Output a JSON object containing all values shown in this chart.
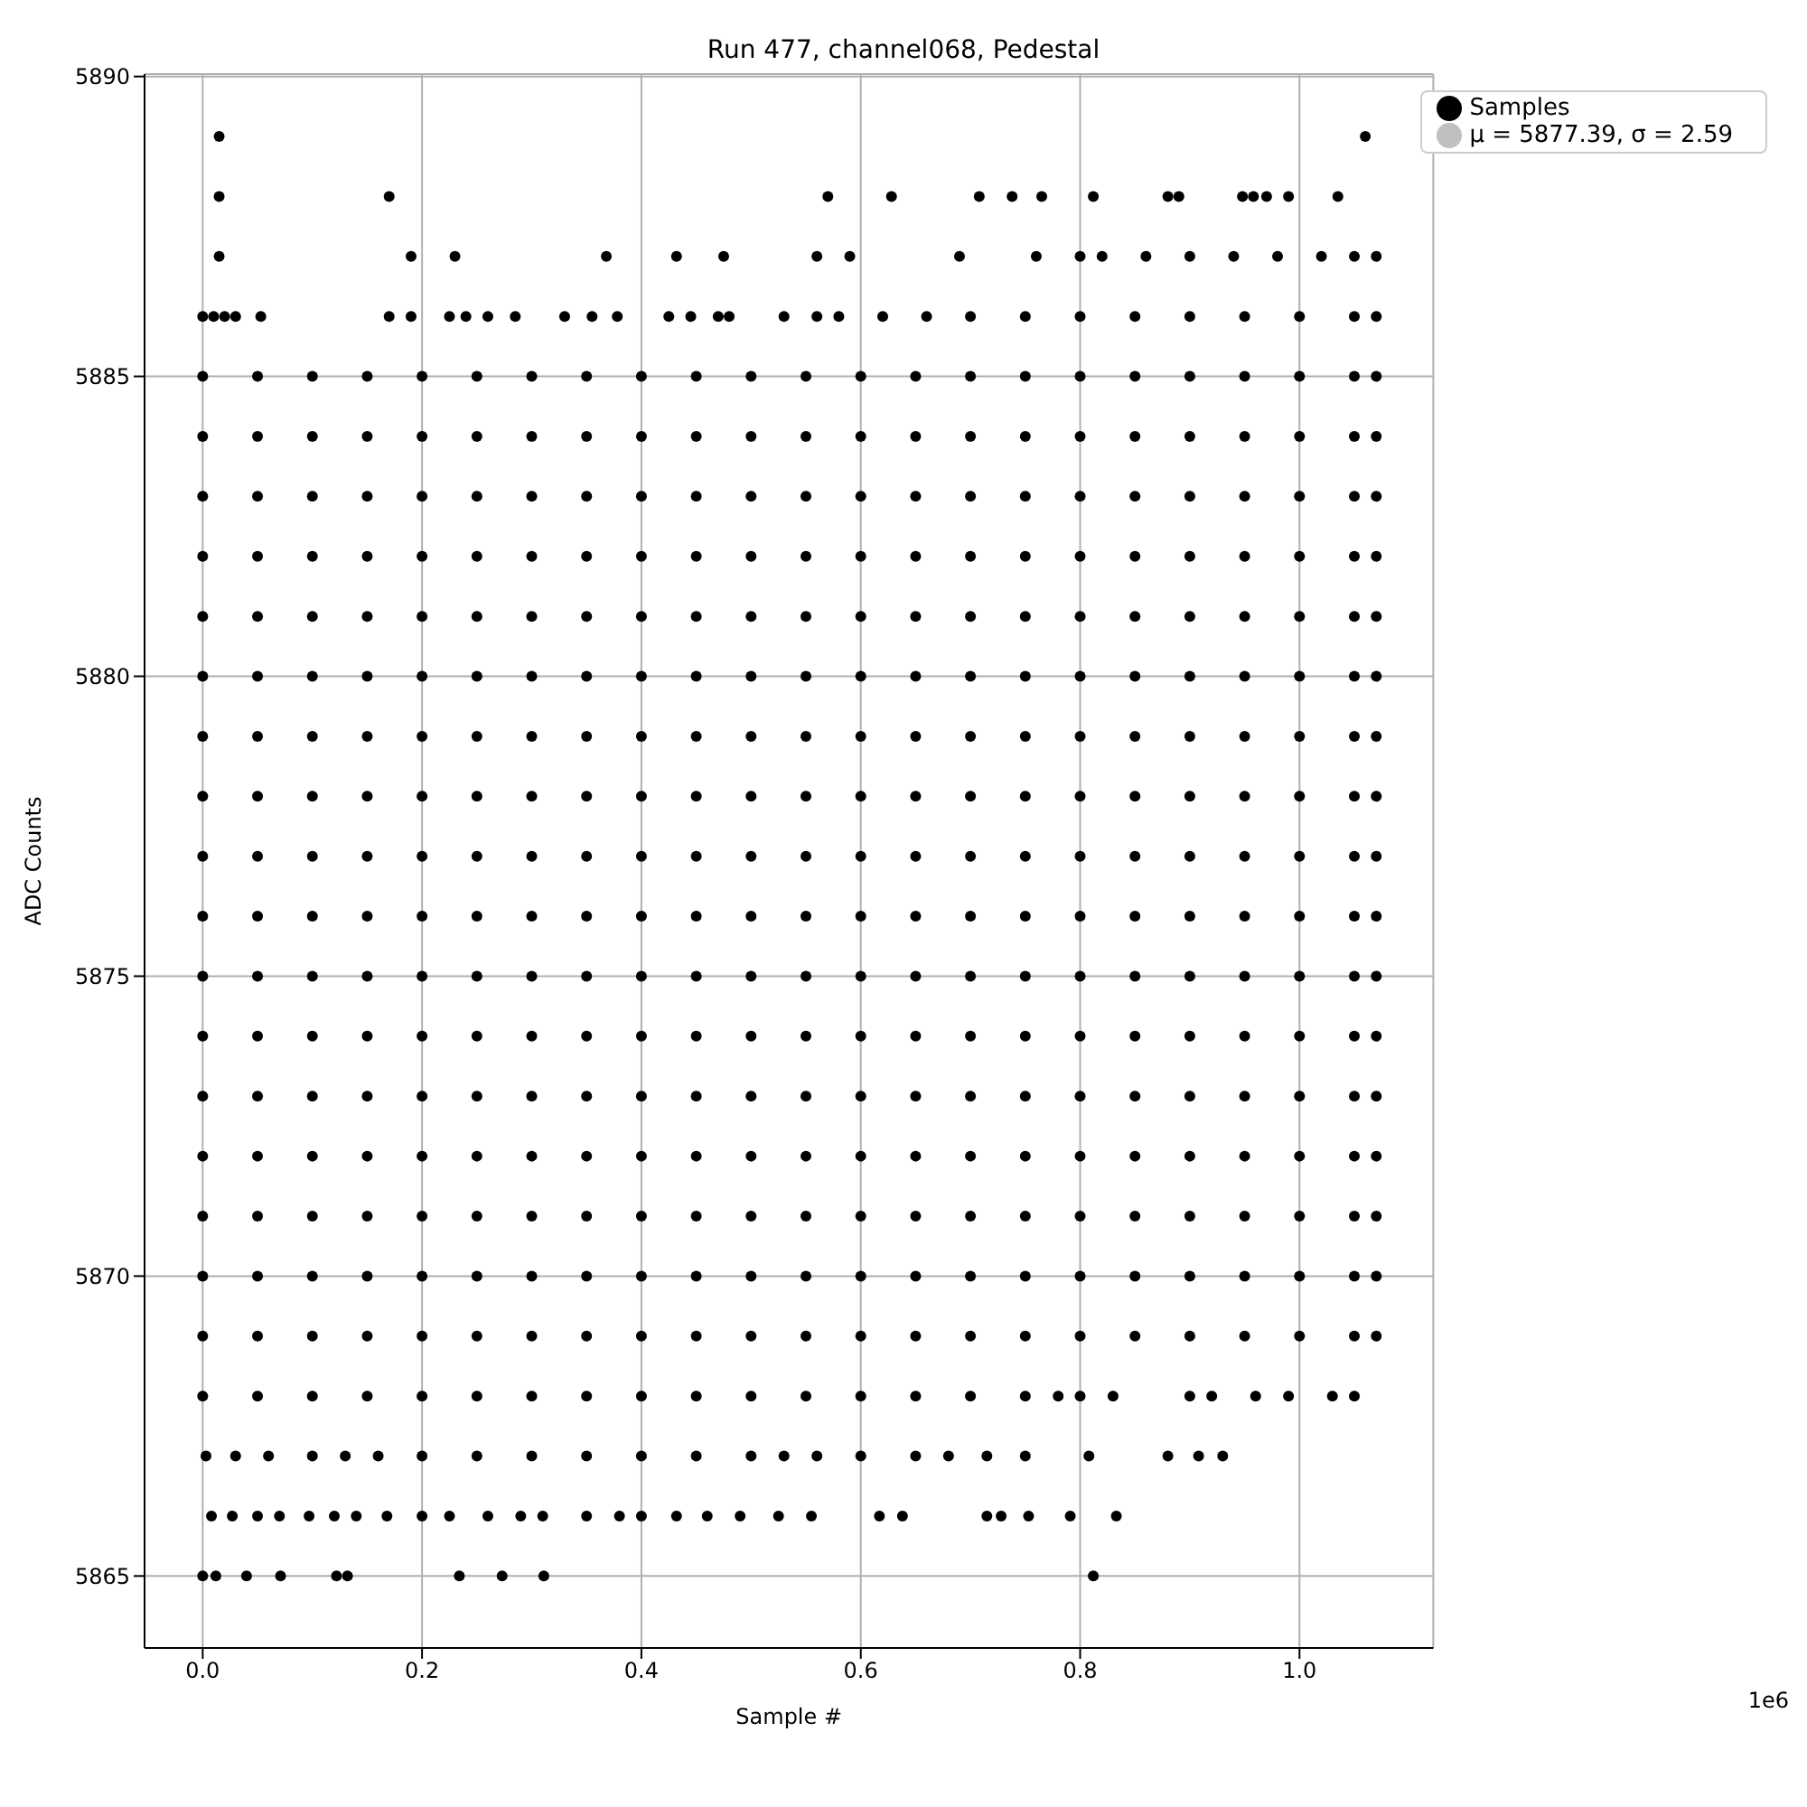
{
  "chart_data": {
    "type": "scatter",
    "title": "Run 477, channel068, Pedestal",
    "xlabel": "Sample #",
    "ylabel": "ADC Counts",
    "annotations": [
      "1e6"
    ],
    "xlim": [
      -0.053,
      1.122
    ],
    "ylim": [
      5863.8,
      5890.04
    ],
    "xticks": [
      {
        "value": 0,
        "label": "0.0"
      },
      0.2,
      0.4,
      0.6,
      0.8,
      {
        "value": 1,
        "label": "1.0"
      }
    ],
    "yticks": [
      5865,
      5870,
      5875,
      5880,
      5885,
      5890
    ],
    "grid": true,
    "legend": "top right",
    "marker": "circle",
    "series": [
      {
        "name": "Samples",
        "color": "#000000",
        "x": [
          0,
          0.012,
          0.04,
          0.071,
          0.122,
          0.132,
          0.234,
          0.273,
          0.311,
          0.812,
          0.008,
          0.027,
          0.05,
          0.07,
          0.097,
          0.12,
          0.14,
          0.168,
          0.2,
          0.225,
          0.26,
          0.29,
          0.31,
          0.35,
          0.38,
          0.4,
          0.432,
          0.46,
          0.49,
          0.525,
          0.555,
          0.617,
          0.638,
          0.715,
          0.728,
          0.753,
          0.791,
          0.833,
          0.003,
          0.03,
          0.06,
          0.1,
          0.13,
          0.16,
          0.2,
          0.25,
          0.3,
          0.35,
          0.4,
          0.45,
          0.5,
          0.53,
          0.56,
          0.6,
          0.65,
          0.68,
          0.715,
          0.75,
          0.808,
          0.88,
          0.908,
          0.93,
          0,
          0.05,
          0.1,
          0.15,
          0.2,
          0.25,
          0.3,
          0.35,
          0.4,
          0.45,
          0.5,
          0.55,
          0.6,
          0.65,
          0.7,
          0.75,
          0.78,
          0.8,
          0.83,
          0.9,
          0.92,
          0.96,
          0.99,
          1.03,
          1.05,
          0,
          0.05,
          0.1,
          0.15,
          0.2,
          0.25,
          0.3,
          0.35,
          0.4,
          0.45,
          0.5,
          0.55,
          0.6,
          0.65,
          0.7,
          0.75,
          0.8,
          0.85,
          0.9,
          0.95,
          1,
          1.05,
          1.07,
          0,
          0.05,
          0.1,
          0.15,
          0.2,
          0.25,
          0.3,
          0.35,
          0.4,
          0.45,
          0.5,
          0.55,
          0.6,
          0.65,
          0.7,
          0.75,
          0.8,
          0.85,
          0.9,
          0.95,
          1,
          1.05,
          1.07,
          0,
          0.05,
          0.1,
          0.15,
          0.2,
          0.25,
          0.3,
          0.35,
          0.4,
          0.45,
          0.5,
          0.55,
          0.6,
          0.65,
          0.7,
          0.75,
          0.8,
          0.85,
          0.9,
          0.95,
          1,
          1.05,
          1.07,
          0,
          0.05,
          0.1,
          0.15,
          0.2,
          0.25,
          0.3,
          0.35,
          0.4,
          0.45,
          0.5,
          0.55,
          0.6,
          0.65,
          0.7,
          0.75,
          0.8,
          0.85,
          0.9,
          0.95,
          1,
          1.05,
          1.07,
          0,
          0.05,
          0.1,
          0.15,
          0.2,
          0.25,
          0.3,
          0.35,
          0.4,
          0.45,
          0.5,
          0.55,
          0.6,
          0.65,
          0.7,
          0.75,
          0.8,
          0.85,
          0.9,
          0.95,
          1,
          1.05,
          1.07,
          0,
          0.05,
          0.1,
          0.15,
          0.2,
          0.25,
          0.3,
          0.35,
          0.4,
          0.45,
          0.5,
          0.55,
          0.6,
          0.65,
          0.7,
          0.75,
          0.8,
          0.85,
          0.9,
          0.95,
          1,
          1.05,
          1.07,
          0,
          0.05,
          0.1,
          0.15,
          0.2,
          0.25,
          0.3,
          0.35,
          0.4,
          0.45,
          0.5,
          0.55,
          0.6,
          0.65,
          0.7,
          0.75,
          0.8,
          0.85,
          0.9,
          0.95,
          1,
          1.05,
          1.07,
          0,
          0.05,
          0.1,
          0.15,
          0.2,
          0.25,
          0.3,
          0.35,
          0.4,
          0.45,
          0.5,
          0.55,
          0.6,
          0.65,
          0.7,
          0.75,
          0.8,
          0.85,
          0.9,
          0.95,
          1,
          1.05,
          1.07,
          0,
          0.05,
          0.1,
          0.15,
          0.2,
          0.25,
          0.3,
          0.35,
          0.4,
          0.45,
          0.5,
          0.55,
          0.6,
          0.65,
          0.7,
          0.75,
          0.8,
          0.85,
          0.9,
          0.95,
          1,
          1.05,
          1.07,
          0,
          0.05,
          0.1,
          0.15,
          0.2,
          0.25,
          0.3,
          0.35,
          0.4,
          0.45,
          0.5,
          0.55,
          0.6,
          0.65,
          0.7,
          0.75,
          0.8,
          0.85,
          0.9,
          0.95,
          1,
          1.05,
          1.07,
          0,
          0.05,
          0.1,
          0.15,
          0.2,
          0.25,
          0.3,
          0.35,
          0.4,
          0.45,
          0.5,
          0.55,
          0.6,
          0.65,
          0.7,
          0.75,
          0.8,
          0.85,
          0.9,
          0.95,
          1,
          1.05,
          1.07,
          0,
          0.05,
          0.1,
          0.15,
          0.2,
          0.25,
          0.3,
          0.35,
          0.4,
          0.45,
          0.5,
          0.55,
          0.6,
          0.65,
          0.7,
          0.75,
          0.8,
          0.85,
          0.9,
          0.95,
          1,
          1.05,
          1.07,
          0,
          0.05,
          0.1,
          0.15,
          0.2,
          0.25,
          0.3,
          0.35,
          0.4,
          0.45,
          0.5,
          0.55,
          0.6,
          0.65,
          0.7,
          0.75,
          0.8,
          0.85,
          0.9,
          0.95,
          1,
          1.05,
          1.07,
          0,
          0.05,
          0.1,
          0.15,
          0.2,
          0.25,
          0.3,
          0.35,
          0.4,
          0.45,
          0.5,
          0.55,
          0.6,
          0.65,
          0.7,
          0.75,
          0.8,
          0.85,
          0.9,
          0.95,
          1,
          1.05,
          1.07,
          0,
          0.05,
          0.1,
          0.15,
          0.2,
          0.25,
          0.3,
          0.35,
          0.4,
          0.45,
          0.5,
          0.55,
          0.6,
          0.65,
          0.7,
          0.75,
          0.8,
          0.85,
          0.9,
          0.95,
          1,
          1.05,
          1.07,
          0,
          0.05,
          0.1,
          0.15,
          0.2,
          0.25,
          0.3,
          0.35,
          0.4,
          0.45,
          0.5,
          0.55,
          0.6,
          0.65,
          0.7,
          0.75,
          0.8,
          0.85,
          0.9,
          0.95,
          1,
          1.05,
          1.07,
          0,
          0.05,
          0.1,
          0.15,
          0.2,
          0.25,
          0.3,
          0.35,
          0.4,
          0.45,
          0.5,
          0.55,
          0.6,
          0.65,
          0.7,
          0.75,
          0.8,
          0.85,
          0.9,
          0.95,
          1,
          1.05,
          1.07,
          0,
          0.01,
          0.02,
          0.03,
          0.053,
          0.17,
          0.19,
          0.225,
          0.24,
          0.26,
          0.285,
          0.33,
          0.355,
          0.378,
          0.425,
          0.445,
          0.47,
          0.48,
          0.53,
          0.56,
          0.58,
          0.62,
          0.66,
          0.7,
          0.75,
          0.8,
          0.85,
          0.9,
          0.95,
          1,
          1.05,
          1.07,
          0.015,
          0.19,
          0.23,
          0.368,
          0.432,
          0.475,
          0.56,
          0.59,
          0.69,
          0.76,
          0.8,
          0.82,
          0.86,
          0.9,
          0.94,
          0.98,
          1.02,
          1.05,
          1.07,
          0.015,
          0.17,
          0.57,
          0.628,
          0.708,
          0.738,
          0.765,
          0.812,
          0.88,
          0.89,
          0.948,
          0.958,
          0.97,
          0.99,
          1.035,
          0.015,
          1.06
        ],
        "values": [
          5865,
          5865,
          5865,
          5865,
          5865,
          5865,
          5865,
          5865,
          5865,
          5865,
          5866,
          5866,
          5866,
          5866,
          5866,
          5866,
          5866,
          5866,
          5866,
          5866,
          5866,
          5866,
          5866,
          5866,
          5866,
          5866,
          5866,
          5866,
          5866,
          5866,
          5866,
          5866,
          5866,
          5866,
          5866,
          5866,
          5866,
          5866,
          5867,
          5867,
          5867,
          5867,
          5867,
          5867,
          5867,
          5867,
          5867,
          5867,
          5867,
          5867,
          5867,
          5867,
          5867,
          5867,
          5867,
          5867,
          5867,
          5867,
          5867,
          5867,
          5867,
          5867,
          5868,
          5868,
          5868,
          5868,
          5868,
          5868,
          5868,
          5868,
          5868,
          5868,
          5868,
          5868,
          5868,
          5868,
          5868,
          5868,
          5868,
          5868,
          5868,
          5868,
          5868,
          5868,
          5868,
          5868,
          5868,
          5869,
          5869,
          5869,
          5869,
          5869,
          5869,
          5869,
          5869,
          5869,
          5869,
          5869,
          5869,
          5869,
          5869,
          5869,
          5869,
          5869,
          5869,
          5869,
          5869,
          5869,
          5869,
          5869,
          5870,
          5870,
          5870,
          5870,
          5870,
          5870,
          5870,
          5870,
          5870,
          5870,
          5870,
          5870,
          5870,
          5870,
          5870,
          5870,
          5870,
          5870,
          5870,
          5870,
          5870,
          5870,
          5870,
          5871,
          5871,
          5871,
          5871,
          5871,
          5871,
          5871,
          5871,
          5871,
          5871,
          5871,
          5871,
          5871,
          5871,
          5871,
          5871,
          5871,
          5871,
          5871,
          5871,
          5871,
          5871,
          5871,
          5872,
          5872,
          5872,
          5872,
          5872,
          5872,
          5872,
          5872,
          5872,
          5872,
          5872,
          5872,
          5872,
          5872,
          5872,
          5872,
          5872,
          5872,
          5872,
          5872,
          5872,
          5872,
          5872,
          5873,
          5873,
          5873,
          5873,
          5873,
          5873,
          5873,
          5873,
          5873,
          5873,
          5873,
          5873,
          5873,
          5873,
          5873,
          5873,
          5873,
          5873,
          5873,
          5873,
          5873,
          5873,
          5873,
          5874,
          5874,
          5874,
          5874,
          5874,
          5874,
          5874,
          5874,
          5874,
          5874,
          5874,
          5874,
          5874,
          5874,
          5874,
          5874,
          5874,
          5874,
          5874,
          5874,
          5874,
          5874,
          5874,
          5875,
          5875,
          5875,
          5875,
          5875,
          5875,
          5875,
          5875,
          5875,
          5875,
          5875,
          5875,
          5875,
          5875,
          5875,
          5875,
          5875,
          5875,
          5875,
          5875,
          5875,
          5875,
          5875,
          5876,
          5876,
          5876,
          5876,
          5876,
          5876,
          5876,
          5876,
          5876,
          5876,
          5876,
          5876,
          5876,
          5876,
          5876,
          5876,
          5876,
          5876,
          5876,
          5876,
          5876,
          5876,
          5876,
          5877,
          5877,
          5877,
          5877,
          5877,
          5877,
          5877,
          5877,
          5877,
          5877,
          5877,
          5877,
          5877,
          5877,
          5877,
          5877,
          5877,
          5877,
          5877,
          5877,
          5877,
          5877,
          5877,
          5878,
          5878,
          5878,
          5878,
          5878,
          5878,
          5878,
          5878,
          5878,
          5878,
          5878,
          5878,
          5878,
          5878,
          5878,
          5878,
          5878,
          5878,
          5878,
          5878,
          5878,
          5878,
          5878,
          5879,
          5879,
          5879,
          5879,
          5879,
          5879,
          5879,
          5879,
          5879,
          5879,
          5879,
          5879,
          5879,
          5879,
          5879,
          5879,
          5879,
          5879,
          5879,
          5879,
          5879,
          5879,
          5879,
          5880,
          5880,
          5880,
          5880,
          5880,
          5880,
          5880,
          5880,
          5880,
          5880,
          5880,
          5880,
          5880,
          5880,
          5880,
          5880,
          5880,
          5880,
          5880,
          5880,
          5880,
          5880,
          5880,
          5881,
          5881,
          5881,
          5881,
          5881,
          5881,
          5881,
          5881,
          5881,
          5881,
          5881,
          5881,
          5881,
          5881,
          5881,
          5881,
          5881,
          5881,
          5881,
          5881,
          5881,
          5881,
          5881,
          5882,
          5882,
          5882,
          5882,
          5882,
          5882,
          5882,
          5882,
          5882,
          5882,
          5882,
          5882,
          5882,
          5882,
          5882,
          5882,
          5882,
          5882,
          5882,
          5882,
          5882,
          5882,
          5882,
          5883,
          5883,
          5883,
          5883,
          5883,
          5883,
          5883,
          5883,
          5883,
          5883,
          5883,
          5883,
          5883,
          5883,
          5883,
          5883,
          5883,
          5883,
          5883,
          5883,
          5883,
          5883,
          5883,
          5884,
          5884,
          5884,
          5884,
          5884,
          5884,
          5884,
          5884,
          5884,
          5884,
          5884,
          5884,
          5884,
          5884,
          5884,
          5884,
          5884,
          5884,
          5884,
          5884,
          5884,
          5884,
          5884,
          5885,
          5885,
          5885,
          5885,
          5885,
          5885,
          5885,
          5885,
          5885,
          5885,
          5885,
          5885,
          5885,
          5885,
          5885,
          5885,
          5885,
          5885,
          5885,
          5885,
          5885,
          5885,
          5885,
          5886,
          5886,
          5886,
          5886,
          5886,
          5886,
          5886,
          5886,
          5886,
          5886,
          5886,
          5886,
          5886,
          5886,
          5886,
          5886,
          5886,
          5886,
          5886,
          5886,
          5886,
          5886,
          5886,
          5886,
          5886,
          5886,
          5886,
          5886,
          5886,
          5886,
          5886,
          5886,
          5887,
          5887,
          5887,
          5887,
          5887,
          5887,
          5887,
          5887,
          5887,
          5887,
          5887,
          5887,
          5887,
          5887,
          5887,
          5887,
          5887,
          5887,
          5887,
          5888,
          5888,
          5888,
          5888,
          5888,
          5888,
          5888,
          5888,
          5888,
          5888,
          5888,
          5888,
          5888,
          5888,
          5888,
          5889,
          5889
        ]
      },
      {
        "name": "μ = 5877.39, σ = 2.59",
        "color": "#c0c0c0"
      }
    ]
  }
}
